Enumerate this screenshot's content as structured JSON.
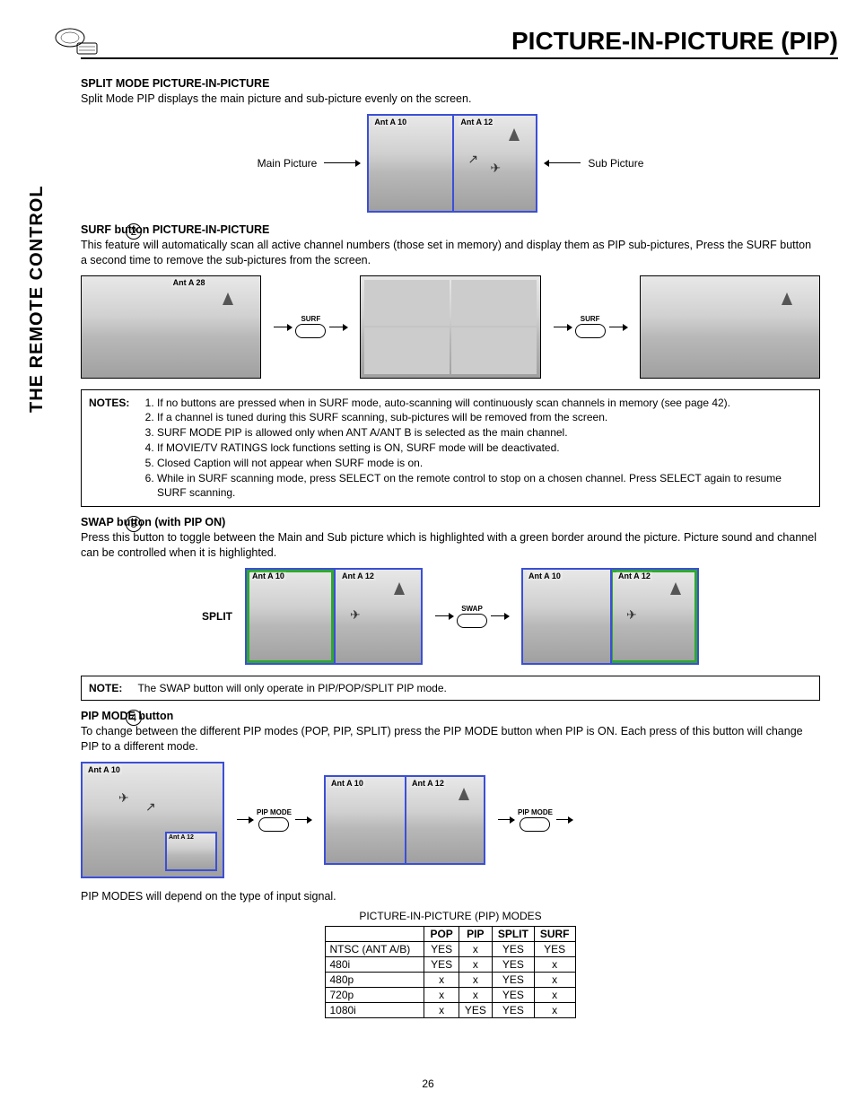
{
  "header": {
    "title": "PICTURE-IN-PICTURE (PIP)"
  },
  "side_label": "THE REMOTE CONTROL",
  "page_number": "26",
  "split": {
    "title": "SPLIT MODE PICTURE-IN-PICTURE",
    "para": "Split Mode PIP displays the main picture and sub-picture evenly on the screen.",
    "main_label": "Main Picture",
    "sub_label": "Sub Picture",
    "ant_left": "Ant A 10",
    "ant_right": "Ant A 12"
  },
  "surf": {
    "num": "2",
    "title": "SURF button PICTURE-IN-PICTURE",
    "para": "This feature will automatically scan all active channel numbers (those set in memory) and display them as PIP sub-pictures,   Press the SURF button a second time to remove the sub-pictures from the screen.",
    "ant": "Ant A   28",
    "btn": "SURF"
  },
  "notes": {
    "label": "NOTES:",
    "items": [
      "If no buttons are pressed when in SURF mode, auto-scanning will continuously scan channels in memory (see page 42).",
      "If a channel is tuned during this SURF scanning, sub-pictures will be removed from the screen.",
      "SURF MODE PIP is allowed only when ANT A/ANT B is selected as the main channel.",
      "If MOVIE/TV RATINGS lock functions setting is ON, SURF mode will be deactivated.",
      "Closed Caption will not appear when SURF mode is on.",
      "While in SURF scanning mode, press SELECT on the remote control to stop on a chosen channel.  Press SELECT again to resume SURF scanning."
    ]
  },
  "swap": {
    "num": "3",
    "title": "SWAP button (with PIP ON)",
    "para": "Press this button to toggle between the Main and Sub picture which is highlighted with a green border around the picture.  Picture sound and channel can be controlled when it is highlighted.",
    "split_label": "SPLIT",
    "btn": "SWAP",
    "ant_left": "Ant A 10",
    "ant_right": "Ant A 12",
    "note_label": "NOTE:",
    "note_text": "The SWAP button will only operate in PIP/POP/SPLIT PIP mode."
  },
  "pipmode": {
    "num": "4",
    "title": "PIP MODE button",
    "para": "To change between the different PIP modes (POP, PIP, SPLIT) press the PIP MODE button when PIP is ON.  Each press of this button will change PIP to a different mode.",
    "btn": "PIP MODE",
    "ant_main": "Ant A 10",
    "ant_sub": "Ant A 12",
    "footer": "PIP MODES will depend on the type of input signal."
  },
  "modes_table": {
    "caption": "PICTURE-IN-PICTURE (PIP) MODES",
    "columns": [
      "",
      "POP",
      "PIP",
      "SPLIT",
      "SURF"
    ],
    "rows": [
      [
        "NTSC (ANT A/B)",
        "YES",
        "x",
        "YES",
        "YES"
      ],
      [
        "480i",
        "YES",
        "x",
        "YES",
        "x"
      ],
      [
        "480p",
        "x",
        "x",
        "YES",
        "x"
      ],
      [
        "720p",
        "x",
        "x",
        "YES",
        "x"
      ],
      [
        "1080i",
        "x",
        "YES",
        "YES",
        "x"
      ]
    ]
  }
}
